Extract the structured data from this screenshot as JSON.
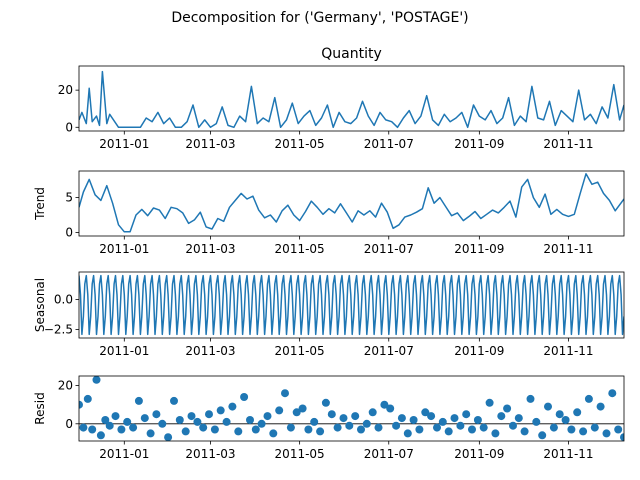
{
  "figure": {
    "suptitle": "Decomposition for ('Germany', 'POSTAGE')"
  },
  "colors": {
    "series": "#1f77b4",
    "axis": "#000000",
    "background": "#ffffff"
  },
  "chart_data": [
    {
      "panel": "observed",
      "type": "line",
      "title": "Quantity",
      "ylabel": "",
      "x_range": [
        "2010-12-01",
        "2011-12-09"
      ],
      "ylim": [
        -2,
        33
      ],
      "yticks": [
        0,
        20
      ],
      "ytick_labels": [
        "0",
        "20"
      ],
      "xticks": [
        "2011-01-01",
        "2011-03-01",
        "2011-05-01",
        "2011-07-01",
        "2011-09-01",
        "2011-11-01"
      ],
      "xtick_labels": [
        "2011-01",
        "2011-03",
        "2011-05",
        "2011-07",
        "2011-09",
        "2011-11"
      ],
      "x": [
        "2010-12-01",
        "2010-12-03",
        "2010-12-06",
        "2010-12-08",
        "2010-12-10",
        "2010-12-13",
        "2010-12-15",
        "2010-12-17",
        "2010-12-20",
        "2010-12-22",
        "2010-12-28",
        "2011-01-04",
        "2011-01-08",
        "2011-01-12",
        "2011-01-16",
        "2011-01-20",
        "2011-01-24",
        "2011-01-28",
        "2011-02-01",
        "2011-02-05",
        "2011-02-09",
        "2011-02-13",
        "2011-02-17",
        "2011-02-21",
        "2011-02-25",
        "2011-03-01",
        "2011-03-05",
        "2011-03-09",
        "2011-03-13",
        "2011-03-17",
        "2011-03-21",
        "2011-03-25",
        "2011-03-29",
        "2011-04-02",
        "2011-04-06",
        "2011-04-10",
        "2011-04-14",
        "2011-04-18",
        "2011-04-22",
        "2011-04-26",
        "2011-04-30",
        "2011-05-04",
        "2011-05-08",
        "2011-05-12",
        "2011-05-16",
        "2011-05-20",
        "2011-05-24",
        "2011-05-28",
        "2011-06-01",
        "2011-06-05",
        "2011-06-09",
        "2011-06-13",
        "2011-06-17",
        "2011-06-21",
        "2011-06-25",
        "2011-06-29",
        "2011-07-03",
        "2011-07-07",
        "2011-07-11",
        "2011-07-15",
        "2011-07-19",
        "2011-07-23",
        "2011-07-27",
        "2011-07-31",
        "2011-08-04",
        "2011-08-08",
        "2011-08-12",
        "2011-08-16",
        "2011-08-20",
        "2011-08-24",
        "2011-08-28",
        "2011-09-01",
        "2011-09-05",
        "2011-09-09",
        "2011-09-13",
        "2011-09-17",
        "2011-09-21",
        "2011-09-25",
        "2011-09-29",
        "2011-10-03",
        "2011-10-07",
        "2011-10-11",
        "2011-10-15",
        "2011-10-19",
        "2011-10-23",
        "2011-10-27",
        "2011-10-31",
        "2011-11-04",
        "2011-11-08",
        "2011-11-12",
        "2011-11-16",
        "2011-11-20",
        "2011-11-24",
        "2011-11-28",
        "2011-12-02",
        "2011-12-06",
        "2011-12-09"
      ],
      "values": [
        4,
        8,
        2,
        21,
        3,
        6,
        1,
        30,
        2,
        7,
        0,
        0,
        0,
        0,
        5,
        3,
        8,
        2,
        5,
        0,
        0,
        3,
        12,
        0,
        4,
        0,
        2,
        11,
        1,
        0,
        6,
        3,
        22,
        2,
        5,
        3,
        16,
        0,
        4,
        13,
        2,
        6,
        9,
        1,
        5,
        12,
        0,
        8,
        3,
        2,
        5,
        14,
        6,
        1,
        8,
        4,
        3,
        0,
        5,
        9,
        2,
        6,
        17,
        4,
        1,
        7,
        3,
        5,
        8,
        0,
        12,
        6,
        4,
        9,
        2,
        5,
        16,
        1,
        6,
        3,
        22,
        5,
        4,
        14,
        1,
        9,
        6,
        3,
        20,
        4,
        7,
        2,
        11,
        5,
        23,
        4,
        12
      ]
    },
    {
      "panel": "trend",
      "type": "line",
      "title": "",
      "ylabel": "Trend",
      "x_range": [
        "2010-12-01",
        "2011-12-09"
      ],
      "ylim": [
        -0.5,
        8.8
      ],
      "yticks": [
        0,
        5
      ],
      "ytick_labels": [
        "0",
        "5"
      ],
      "xticks": [
        "2011-01-01",
        "2011-03-01",
        "2011-05-01",
        "2011-07-01",
        "2011-09-01",
        "2011-11-01"
      ],
      "xtick_labels": [
        "2011-01",
        "2011-03",
        "2011-05",
        "2011-07",
        "2011-09",
        "2011-11"
      ],
      "x": [
        "2010-12-01",
        "2010-12-04",
        "2010-12-08",
        "2010-12-12",
        "2010-12-16",
        "2010-12-20",
        "2010-12-24",
        "2010-12-28",
        "2011-01-01",
        "2011-01-05",
        "2011-01-09",
        "2011-01-13",
        "2011-01-17",
        "2011-01-21",
        "2011-01-25",
        "2011-01-29",
        "2011-02-02",
        "2011-02-06",
        "2011-02-10",
        "2011-02-14",
        "2011-02-18",
        "2011-02-22",
        "2011-02-26",
        "2011-03-02",
        "2011-03-06",
        "2011-03-10",
        "2011-03-14",
        "2011-03-18",
        "2011-03-22",
        "2011-03-26",
        "2011-03-30",
        "2011-04-03",
        "2011-04-07",
        "2011-04-11",
        "2011-04-15",
        "2011-04-19",
        "2011-04-23",
        "2011-04-27",
        "2011-05-01",
        "2011-05-05",
        "2011-05-09",
        "2011-05-13",
        "2011-05-17",
        "2011-05-21",
        "2011-05-25",
        "2011-05-29",
        "2011-06-02",
        "2011-06-06",
        "2011-06-10",
        "2011-06-14",
        "2011-06-18",
        "2011-06-22",
        "2011-06-26",
        "2011-06-30",
        "2011-07-04",
        "2011-07-08",
        "2011-07-12",
        "2011-07-16",
        "2011-07-20",
        "2011-07-24",
        "2011-07-28",
        "2011-08-01",
        "2011-08-05",
        "2011-08-09",
        "2011-08-13",
        "2011-08-17",
        "2011-08-21",
        "2011-08-25",
        "2011-08-29",
        "2011-09-02",
        "2011-09-06",
        "2011-09-10",
        "2011-09-14",
        "2011-09-18",
        "2011-09-22",
        "2011-09-26",
        "2011-09-30",
        "2011-10-04",
        "2011-10-08",
        "2011-10-12",
        "2011-10-16",
        "2011-10-20",
        "2011-10-24",
        "2011-10-28",
        "2011-11-01",
        "2011-11-05",
        "2011-11-09",
        "2011-11-13",
        "2011-11-17",
        "2011-11-21",
        "2011-11-25",
        "2011-11-29",
        "2011-12-03",
        "2011-12-09"
      ],
      "values": [
        3.6,
        5.8,
        7.6,
        5.4,
        4.6,
        6.7,
        4.2,
        1.1,
        0.1,
        0.1,
        2.5,
        3.3,
        2.4,
        3.5,
        3.2,
        2.0,
        3.6,
        3.4,
        2.8,
        1.3,
        1.8,
        2.9,
        0.8,
        0.5,
        2.0,
        1.6,
        3.6,
        4.6,
        5.6,
        4.8,
        5.2,
        3.2,
        2.1,
        2.5,
        1.5,
        3.1,
        3.9,
        2.5,
        1.7,
        3.0,
        4.5,
        3.6,
        2.6,
        3.4,
        2.8,
        4.1,
        2.8,
        1.5,
        3.1,
        2.5,
        3.1,
        2.2,
        4.2,
        2.9,
        0.6,
        1.1,
        2.2,
        2.5,
        2.9,
        3.4,
        6.4,
        4.2,
        5.0,
        3.7,
        2.4,
        2.8,
        1.7,
        2.3,
        3.0,
        2.0,
        2.6,
        3.2,
        2.8,
        3.6,
        4.5,
        2.2,
        6.5,
        7.6,
        5.0,
        3.6,
        5.5,
        2.6,
        3.3,
        2.6,
        2.3,
        2.6,
        5.6,
        8.4,
        6.9,
        7.2,
        5.6,
        4.6,
        3.1,
        4.8
      ]
    },
    {
      "panel": "seasonal",
      "type": "line",
      "title": "",
      "ylabel": "Seasonal",
      "x_range": [
        "2010-12-01",
        "2011-12-09"
      ],
      "ylim": [
        -3.2,
        2.3
      ],
      "yticks": [
        0.0,
        -2.5
      ],
      "ytick_labels": [
        "0.0",
        "−2.5"
      ],
      "xticks": [
        "2011-01-01",
        "2011-03-01",
        "2011-05-01",
        "2011-07-01",
        "2011-09-01",
        "2011-11-01"
      ],
      "xtick_labels": [
        "2011-01",
        "2011-03",
        "2011-05",
        "2011-07",
        "2011-09",
        "2011-11"
      ],
      "period_days": 5,
      "pattern": [
        2.0,
        0.4,
        -2.9,
        -1.4,
        1.3
      ]
    },
    {
      "panel": "resid",
      "type": "scatter",
      "title": "",
      "ylabel": "Resid",
      "x_range": [
        "2010-12-01",
        "2011-12-09"
      ],
      "ylim": [
        -9,
        25
      ],
      "yticks": [
        0,
        20
      ],
      "ytick_labels": [
        "0",
        "20"
      ],
      "xticks": [
        "2011-01-01",
        "2011-03-01",
        "2011-05-01",
        "2011-07-01",
        "2011-09-01",
        "2011-11-01"
      ],
      "xtick_labels": [
        "2011-01",
        "2011-03",
        "2011-05",
        "2011-07",
        "2011-09",
        "2011-11"
      ],
      "x": [
        "2010-12-01",
        "2010-12-04",
        "2010-12-07",
        "2010-12-10",
        "2010-12-13",
        "2010-12-16",
        "2010-12-19",
        "2010-12-22",
        "2010-12-26",
        "2010-12-30",
        "2011-01-03",
        "2011-01-07",
        "2011-01-11",
        "2011-01-15",
        "2011-01-19",
        "2011-01-23",
        "2011-01-27",
        "2011-01-31",
        "2011-02-04",
        "2011-02-08",
        "2011-02-12",
        "2011-02-16",
        "2011-02-20",
        "2011-02-24",
        "2011-02-28",
        "2011-03-04",
        "2011-03-08",
        "2011-03-12",
        "2011-03-16",
        "2011-03-20",
        "2011-03-24",
        "2011-03-28",
        "2011-04-01",
        "2011-04-05",
        "2011-04-09",
        "2011-04-13",
        "2011-04-17",
        "2011-04-21",
        "2011-04-25",
        "2011-04-29",
        "2011-05-03",
        "2011-05-07",
        "2011-05-11",
        "2011-05-15",
        "2011-05-19",
        "2011-05-23",
        "2011-05-27",
        "2011-05-31",
        "2011-06-04",
        "2011-06-08",
        "2011-06-12",
        "2011-06-16",
        "2011-06-20",
        "2011-06-24",
        "2011-06-28",
        "2011-07-02",
        "2011-07-06",
        "2011-07-10",
        "2011-07-14",
        "2011-07-18",
        "2011-07-22",
        "2011-07-26",
        "2011-07-30",
        "2011-08-03",
        "2011-08-07",
        "2011-08-11",
        "2011-08-15",
        "2011-08-19",
        "2011-08-23",
        "2011-08-27",
        "2011-08-31",
        "2011-09-04",
        "2011-09-08",
        "2011-09-12",
        "2011-09-16",
        "2011-09-20",
        "2011-09-24",
        "2011-09-28",
        "2011-10-02",
        "2011-10-06",
        "2011-10-10",
        "2011-10-14",
        "2011-10-18",
        "2011-10-22",
        "2011-10-26",
        "2011-10-30",
        "2011-11-03",
        "2011-11-07",
        "2011-11-11",
        "2011-11-15",
        "2011-11-19",
        "2011-11-23",
        "2011-11-27",
        "2011-12-01",
        "2011-12-05",
        "2011-12-09"
      ],
      "values": [
        10,
        -2,
        13,
        -3,
        23,
        -6,
        2,
        -1,
        4,
        -3,
        1,
        -2,
        12,
        3,
        -5,
        5,
        0,
        -7,
        12,
        2,
        -4,
        4,
        1,
        -2,
        5,
        -3,
        7,
        1,
        9,
        -4,
        14,
        2,
        -3,
        0,
        4,
        -5,
        7,
        16,
        -2,
        6,
        8,
        -3,
        1,
        -4,
        11,
        5,
        -2,
        3,
        -1,
        4,
        -3,
        0,
        6,
        -2,
        10,
        8,
        -1,
        3,
        -5,
        2,
        -3,
        6,
        4,
        -2,
        1,
        -4,
        3,
        -1,
        5,
        -3,
        2,
        -2,
        11,
        -5,
        4,
        8,
        -1,
        3,
        -4,
        13,
        1,
        -6,
        9,
        -2,
        5,
        2,
        -3,
        6,
        -4,
        13,
        -2,
        9,
        -5,
        16,
        -3,
        -7
      ]
    }
  ]
}
